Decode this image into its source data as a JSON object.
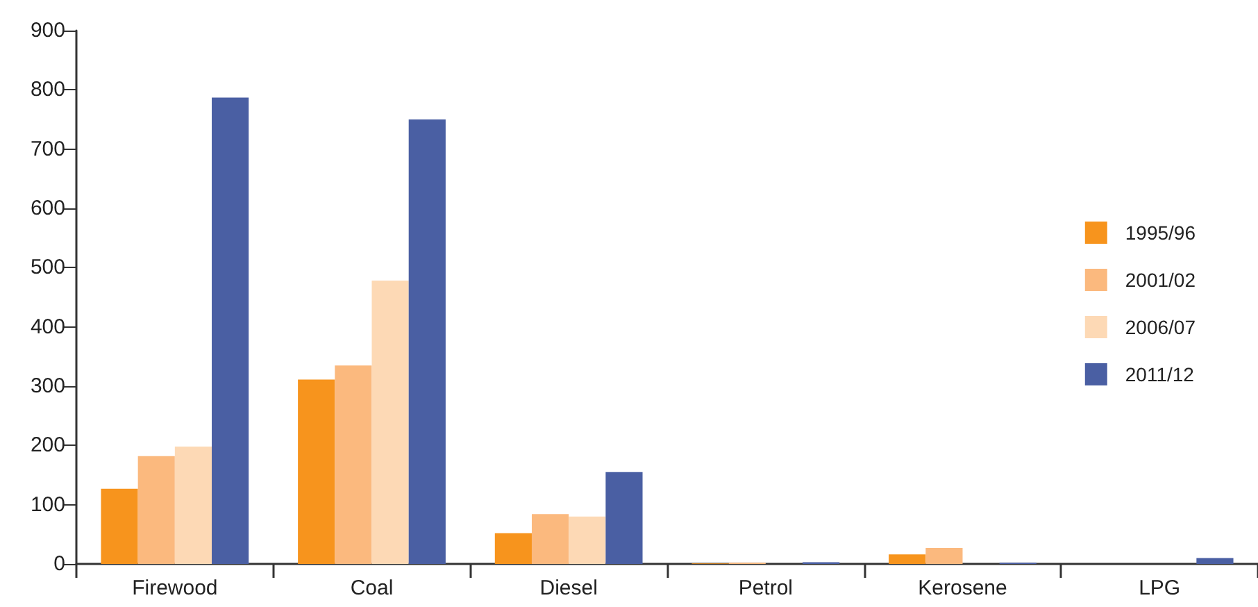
{
  "chart_data": {
    "type": "bar",
    "categories": [
      "Firewood",
      "Coal",
      "Diesel",
      "Petrol",
      "Kerosene",
      "LPG"
    ],
    "series": [
      {
        "name": "1995/96",
        "color": "#f7941d",
        "values": [
          127,
          311,
          52,
          1,
          16,
          0
        ]
      },
      {
        "name": "2001/02",
        "color": "#fbb97e",
        "values": [
          182,
          335,
          84,
          2,
          27,
          0
        ]
      },
      {
        "name": "2006/07",
        "color": "#fdd9b5",
        "values": [
          198,
          478,
          80,
          0,
          null,
          0
        ]
      },
      {
        "name": "2011/12",
        "color": "#4a5fa3",
        "values": [
          787,
          750,
          155,
          3,
          2,
          10
        ]
      }
    ],
    "ylim": [
      0,
      900
    ],
    "yticks": [
      0,
      100,
      200,
      300,
      400,
      500,
      600,
      700,
      800,
      900
    ],
    "grid": false,
    "legend": "right"
  }
}
